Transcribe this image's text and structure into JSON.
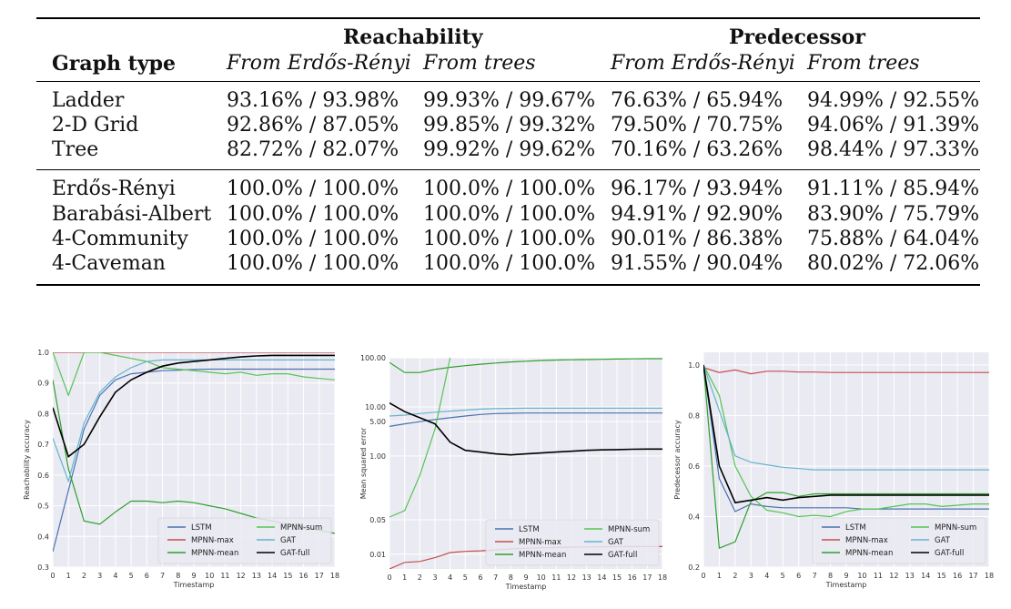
{
  "table": {
    "group_headers": [
      "Reachability",
      "Predecessor"
    ],
    "row_header": "Graph type",
    "sub_headers": [
      "From Erdős-Rényi",
      "From trees",
      "From Erdős-Rényi",
      "From trees"
    ],
    "rows": [
      {
        "label": "Ladder",
        "cells": [
          "93.16% / 93.98%",
          "99.93% / 99.67%",
          "76.63% / 65.94%",
          "94.99% / 92.55%"
        ]
      },
      {
        "label": "2-D Grid",
        "cells": [
          "92.86% / 87.05%",
          "99.85% / 99.32%",
          "79.50% / 70.75%",
          "94.06% / 91.39%"
        ]
      },
      {
        "label": "Tree",
        "cells": [
          "82.72% / 82.07%",
          "99.92% / 99.62%",
          "70.16% / 63.26%",
          "98.44% / 97.33%"
        ]
      },
      {
        "label": "Erdős-Rényi",
        "cells": [
          "100.0% / 100.0%",
          "100.0% / 100.0%",
          "96.17% / 93.94%",
          "91.11% / 85.94%"
        ]
      },
      {
        "label": "Barabási-Albert",
        "cells": [
          "100.0% / 100.0%",
          "100.0% / 100.0%",
          "94.91% / 92.90%",
          "83.90% / 75.79%"
        ]
      },
      {
        "label": "4-Community",
        "cells": [
          "100.0% / 100.0%",
          "100.0% / 100.0%",
          "90.01% / 86.38%",
          "75.88% / 64.04%"
        ]
      },
      {
        "label": "4-Caveman",
        "cells": [
          "100.0% / 100.0%",
          "100.0% / 100.0%",
          "91.55% / 90.04%",
          "80.02% / 72.06%"
        ]
      }
    ]
  },
  "chart_data": [
    {
      "type": "line",
      "xlabel": "Timestamp",
      "ylabel": "Reachability accuracy",
      "xlim": [
        0,
        18
      ],
      "ylim": [
        0.3,
        1.0
      ],
      "yticks": [
        0.3,
        0.4,
        0.5,
        0.6,
        0.7,
        0.8,
        0.9,
        1.0
      ],
      "ytick_labels": [
        "0.3",
        "0.4",
        "0.5",
        "0.6",
        "0.7",
        "0.8",
        "0.9",
        "1.0"
      ],
      "xticks": [
        0,
        1,
        2,
        3,
        4,
        5,
        6,
        7,
        8,
        9,
        10,
        11,
        12,
        13,
        14,
        15,
        16,
        17,
        18
      ],
      "xtick_labels": [
        "0",
        "1",
        "2",
        "3",
        "4",
        "5",
        "6",
        "7",
        "8",
        "9",
        "10",
        "11",
        "12",
        "13",
        "14",
        "15",
        "16",
        "17",
        "18"
      ],
      "grid": true,
      "legend_position": "bottom-right",
      "series": [
        {
          "name": "LSTM",
          "color": "#4c72b0",
          "x": [
            0,
            1,
            2,
            3,
            4,
            5,
            6,
            7,
            8,
            9,
            10,
            11,
            12,
            13,
            14,
            15,
            16,
            17,
            18
          ],
          "y": [
            0.35,
            0.55,
            0.75,
            0.86,
            0.91,
            0.93,
            0.935,
            0.94,
            0.942,
            0.944,
            0.945,
            0.945,
            0.945,
            0.945,
            0.945,
            0.945,
            0.945,
            0.945,
            0.945
          ]
        },
        {
          "name": "MPNN-max",
          "color": "#c44e52",
          "x": [
            0,
            1,
            2,
            3,
            4,
            5,
            6,
            7,
            8,
            9,
            10,
            11,
            12,
            13,
            14,
            15,
            16,
            17,
            18
          ],
          "y": [
            1.0,
            1.0,
            1.0,
            1.0,
            1.0,
            1.0,
            1.0,
            1.0,
            1.0,
            1.0,
            1.0,
            1.0,
            1.0,
            1.0,
            1.0,
            1.0,
            1.0,
            1.0,
            1.0
          ]
        },
        {
          "name": "MPNN-mean",
          "color": "#2ca02c",
          "x": [
            0,
            1,
            2,
            3,
            4,
            5,
            6,
            7,
            8,
            9,
            10,
            11,
            12,
            13,
            14,
            15,
            16,
            17,
            18
          ],
          "y": [
            0.91,
            0.62,
            0.45,
            0.44,
            0.48,
            0.515,
            0.515,
            0.51,
            0.515,
            0.51,
            0.5,
            0.49,
            0.475,
            0.46,
            0.45,
            0.44,
            0.43,
            0.42,
            0.41
          ]
        },
        {
          "name": "MPNN-sum",
          "color": "#55c455",
          "x": [
            0,
            1,
            2,
            3,
            4,
            5,
            6,
            7,
            8,
            9,
            10,
            11,
            12,
            13,
            14,
            15,
            16,
            17,
            18
          ],
          "y": [
            1.0,
            0.86,
            1.0,
            1.0,
            0.99,
            0.98,
            0.97,
            0.95,
            0.945,
            0.94,
            0.935,
            0.93,
            0.935,
            0.925,
            0.93,
            0.93,
            0.92,
            0.915,
            0.91
          ]
        },
        {
          "name": "GAT",
          "color": "#64b5cd",
          "x": [
            0,
            1,
            2,
            3,
            4,
            5,
            6,
            7,
            8,
            9,
            10,
            11,
            12,
            13,
            14,
            15,
            16,
            17,
            18
          ],
          "y": [
            0.72,
            0.58,
            0.77,
            0.87,
            0.92,
            0.95,
            0.97,
            0.975,
            0.975,
            0.975,
            0.975,
            0.975,
            0.975,
            0.975,
            0.975,
            0.975,
            0.975,
            0.975,
            0.975
          ]
        },
        {
          "name": "GAT-full",
          "color": "#000000",
          "x": [
            0,
            1,
            2,
            3,
            4,
            5,
            6,
            7,
            8,
            9,
            10,
            11,
            12,
            13,
            14,
            15,
            16,
            17,
            18
          ],
          "y": [
            0.82,
            0.66,
            0.7,
            0.79,
            0.87,
            0.91,
            0.935,
            0.955,
            0.965,
            0.97,
            0.975,
            0.98,
            0.985,
            0.988,
            0.99,
            0.99,
            0.99,
            0.99,
            0.99
          ]
        }
      ]
    },
    {
      "type": "line",
      "xlabel": "Timestamp",
      "ylabel": "Mean squared error",
      "xlim": [
        0,
        18
      ],
      "ylim": [
        0.005,
        100
      ],
      "yscale": "log",
      "yticks": [
        0.01,
        0.05,
        1.0,
        5.0,
        10.0,
        100.0
      ],
      "ytick_labels": [
        "0.01",
        "0.05",
        "1.00",
        "5.00",
        "10.00",
        "100.00"
      ],
      "xticks": [
        0,
        1,
        2,
        3,
        4,
        5,
        6,
        7,
        8,
        9,
        10,
        11,
        12,
        13,
        14,
        15,
        16,
        17,
        18
      ],
      "xtick_labels": [
        "0",
        "1",
        "2",
        "3",
        "4",
        "5",
        "6",
        "7",
        "8",
        "9",
        "10",
        "11",
        "12",
        "13",
        "14",
        "15",
        "16",
        "17",
        "18"
      ],
      "grid": true,
      "legend_position": "bottom-right",
      "series": [
        {
          "name": "LSTM",
          "color": "#4c72b0",
          "x": [
            0,
            1,
            2,
            3,
            4,
            5,
            6,
            7,
            8,
            9,
            10,
            11,
            12,
            13,
            14,
            15,
            16,
            17,
            18
          ],
          "y": [
            4.0,
            4.5,
            5.0,
            5.5,
            6.0,
            6.5,
            7.0,
            7.3,
            7.4,
            7.5,
            7.5,
            7.5,
            7.5,
            7.5,
            7.5,
            7.5,
            7.5,
            7.5,
            7.5
          ]
        },
        {
          "name": "MPNN-max",
          "color": "#c44e52",
          "x": [
            0,
            1,
            2,
            3,
            4,
            5,
            6,
            7,
            8,
            9,
            10,
            11,
            12,
            13,
            14,
            15,
            16,
            17,
            18
          ],
          "y": [
            0.005,
            0.0068,
            0.0071,
            0.0085,
            0.0108,
            0.0114,
            0.0117,
            0.0122,
            0.0128,
            0.0132,
            0.0135,
            0.0137,
            0.0139,
            0.014,
            0.0141,
            0.0142,
            0.0143,
            0.0143,
            0.0143
          ]
        },
        {
          "name": "MPNN-mean",
          "color": "#2ca02c",
          "x": [
            0,
            1,
            2,
            3,
            4,
            5,
            6,
            7,
            8,
            9,
            10,
            11,
            12,
            13,
            14,
            15,
            16,
            17,
            18
          ],
          "y": [
            80,
            50,
            50,
            58,
            64,
            69,
            74,
            78,
            82,
            85,
            88,
            90,
            91,
            92,
            93,
            94,
            95,
            96,
            96
          ]
        },
        {
          "name": "MPNN-sum",
          "color": "#55c455",
          "x": [
            0,
            1,
            2,
            3,
            4
          ],
          "y": [
            0.057,
            0.077,
            0.4,
            3.5,
            100
          ]
        },
        {
          "name": "GAT",
          "color": "#64b5cd",
          "x": [
            0,
            1,
            2,
            3,
            4,
            5,
            6,
            7,
            8,
            9,
            10,
            11,
            12,
            13,
            14,
            15,
            16,
            17,
            18
          ],
          "y": [
            6.5,
            6.8,
            7.3,
            7.8,
            8.2,
            8.6,
            9.0,
            9.2,
            9.3,
            9.4,
            9.4,
            9.4,
            9.4,
            9.4,
            9.4,
            9.4,
            9.4,
            9.4,
            9.4
          ]
        },
        {
          "name": "GAT-full",
          "color": "#000000",
          "x": [
            0,
            1,
            2,
            3,
            4,
            5,
            6,
            7,
            8,
            9,
            10,
            11,
            12,
            13,
            14,
            15,
            16,
            17,
            18
          ],
          "y": [
            12,
            8,
            6,
            4.5,
            1.9,
            1.3,
            1.2,
            1.1,
            1.05,
            1.1,
            1.15,
            1.2,
            1.25,
            1.3,
            1.33,
            1.35,
            1.37,
            1.38,
            1.38
          ]
        }
      ]
    },
    {
      "type": "line",
      "xlabel": "Timestamp",
      "ylabel": "Predecessor accuracy",
      "xlim": [
        0,
        18
      ],
      "ylim": [
        0.2,
        1.05
      ],
      "yticks": [
        0.2,
        0.4,
        0.6,
        0.8,
        1.0
      ],
      "ytick_labels": [
        "0.2",
        "0.4",
        "0.6",
        "0.8",
        "1.0"
      ],
      "xticks": [
        0,
        1,
        2,
        3,
        4,
        5,
        6,
        7,
        8,
        9,
        10,
        11,
        12,
        13,
        14,
        15,
        16,
        17,
        18
      ],
      "xtick_labels": [
        "0",
        "1",
        "2",
        "3",
        "4",
        "5",
        "6",
        "7",
        "8",
        "9",
        "10",
        "11",
        "12",
        "13",
        "14",
        "15",
        "16",
        "17",
        "18"
      ],
      "grid": true,
      "legend_position": "bottom-right",
      "series": [
        {
          "name": "LSTM",
          "color": "#4c72b0",
          "x": [
            0,
            1,
            2,
            3,
            4,
            5,
            6,
            7,
            8,
            9,
            10,
            11,
            12,
            13,
            14,
            15,
            16,
            17,
            18
          ],
          "y": [
            1.0,
            0.55,
            0.42,
            0.45,
            0.44,
            0.435,
            0.435,
            0.435,
            0.435,
            0.435,
            0.43,
            0.43,
            0.43,
            0.43,
            0.43,
            0.43,
            0.43,
            0.43,
            0.43
          ]
        },
        {
          "name": "MPNN-max",
          "color": "#c44e52",
          "x": [
            0,
            1,
            2,
            3,
            4,
            5,
            6,
            7,
            8,
            9,
            10,
            11,
            12,
            13,
            14,
            15,
            16,
            17,
            18
          ],
          "y": [
            0.99,
            0.97,
            0.98,
            0.965,
            0.975,
            0.975,
            0.972,
            0.972,
            0.97,
            0.97,
            0.97,
            0.97,
            0.97,
            0.97,
            0.97,
            0.97,
            0.97,
            0.97,
            0.97
          ]
        },
        {
          "name": "MPNN-mean",
          "color": "#2ca02c",
          "x": [
            0,
            1,
            2,
            3,
            4,
            5,
            6,
            7,
            8,
            9,
            10,
            11,
            12,
            13,
            14,
            15,
            16,
            17,
            18
          ],
          "y": [
            1.0,
            0.275,
            0.3,
            0.46,
            0.495,
            0.495,
            0.48,
            0.49,
            0.49,
            0.49,
            0.49,
            0.49,
            0.49,
            0.49,
            0.49,
            0.49,
            0.49,
            0.49,
            0.49
          ]
        },
        {
          "name": "MPNN-sum",
          "color": "#55c455",
          "x": [
            0,
            1,
            2,
            3,
            4,
            5,
            6,
            7,
            8,
            9,
            10,
            11,
            12,
            13,
            14,
            15,
            16,
            17,
            18
          ],
          "y": [
            1.0,
            0.88,
            0.6,
            0.48,
            0.425,
            0.415,
            0.4,
            0.405,
            0.4,
            0.42,
            0.43,
            0.43,
            0.44,
            0.45,
            0.45,
            0.44,
            0.445,
            0.45,
            0.45
          ]
        },
        {
          "name": "GAT",
          "color": "#64b5cd",
          "x": [
            0,
            1,
            2,
            3,
            4,
            5,
            6,
            7,
            8,
            9,
            10,
            11,
            12,
            13,
            14,
            15,
            16,
            17,
            18
          ],
          "y": [
            1.0,
            0.82,
            0.64,
            0.615,
            0.605,
            0.595,
            0.59,
            0.585,
            0.585,
            0.585,
            0.585,
            0.585,
            0.585,
            0.585,
            0.585,
            0.585,
            0.585,
            0.585,
            0.585
          ]
        },
        {
          "name": "GAT-full",
          "color": "#000000",
          "x": [
            0,
            1,
            2,
            3,
            4,
            5,
            6,
            7,
            8,
            9,
            10,
            11,
            12,
            13,
            14,
            15,
            16,
            17,
            18
          ],
          "y": [
            1.0,
            0.6,
            0.455,
            0.465,
            0.475,
            0.465,
            0.475,
            0.48,
            0.485,
            0.485,
            0.485,
            0.485,
            0.485,
            0.485,
            0.485,
            0.485,
            0.485,
            0.485,
            0.485
          ]
        }
      ]
    }
  ]
}
